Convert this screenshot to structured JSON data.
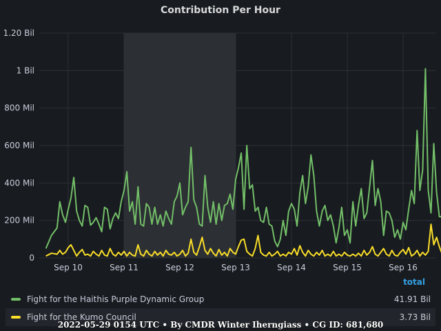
{
  "chart_data": {
    "type": "line",
    "title": "Contribution Per Hour",
    "x_ticks": [
      "Sep 10",
      "Sep 11",
      "Sep 12",
      "Sep 13",
      "Sep 14",
      "Sep 15",
      "Sep 16"
    ],
    "y_ticks": [
      "0",
      "200 Mil",
      "400 Mil",
      "600 Mil",
      "800 Mil",
      "1 Bil",
      "1.20 Bil"
    ],
    "ylim": [
      0,
      1200000000
    ],
    "x_unit": "days since Sep 10 00:00",
    "highlight_region": {
      "from": "Sep 11",
      "to": "Sep 13"
    },
    "grid": true,
    "legend_header": "total",
    "legend_placement": "bottom",
    "series": [
      {
        "name": "Fight for the Haithis Purple Dynamic Group",
        "color": "#73bf69",
        "total": "41.91 Bil",
        "points": [
          [
            -0.4,
            50
          ],
          [
            -0.3,
            120
          ],
          [
            -0.2,
            160
          ],
          [
            -0.15,
            300
          ],
          [
            -0.1,
            230
          ],
          [
            -0.05,
            190
          ],
          [
            0.0,
            260
          ],
          [
            0.05,
            320
          ],
          [
            0.1,
            430
          ],
          [
            0.15,
            250
          ],
          [
            0.2,
            200
          ],
          [
            0.25,
            170
          ],
          [
            0.3,
            280
          ],
          [
            0.35,
            270
          ],
          [
            0.4,
            175
          ],
          [
            0.45,
            190
          ],
          [
            0.5,
            215
          ],
          [
            0.55,
            180
          ],
          [
            0.6,
            140
          ],
          [
            0.65,
            270
          ],
          [
            0.7,
            260
          ],
          [
            0.75,
            155
          ],
          [
            0.8,
            210
          ],
          [
            0.85,
            240
          ],
          [
            0.9,
            210
          ],
          [
            0.95,
            300
          ],
          [
            1.0,
            360
          ],
          [
            1.05,
            460
          ],
          [
            1.1,
            250
          ],
          [
            1.15,
            300
          ],
          [
            1.2,
            180
          ],
          [
            1.25,
            380
          ],
          [
            1.3,
            180
          ],
          [
            1.35,
            170
          ],
          [
            1.4,
            290
          ],
          [
            1.45,
            270
          ],
          [
            1.5,
            180
          ],
          [
            1.55,
            270
          ],
          [
            1.6,
            180
          ],
          [
            1.65,
            230
          ],
          [
            1.7,
            170
          ],
          [
            1.75,
            250
          ],
          [
            1.8,
            210
          ],
          [
            1.85,
            180
          ],
          [
            1.9,
            300
          ],
          [
            1.95,
            330
          ],
          [
            2.0,
            400
          ],
          [
            2.05,
            230
          ],
          [
            2.1,
            270
          ],
          [
            2.15,
            300
          ],
          [
            2.2,
            590
          ],
          [
            2.25,
            310
          ],
          [
            2.3,
            270
          ],
          [
            2.35,
            180
          ],
          [
            2.4,
            170
          ],
          [
            2.45,
            440
          ],
          [
            2.5,
            270
          ],
          [
            2.55,
            190
          ],
          [
            2.6,
            300
          ],
          [
            2.65,
            180
          ],
          [
            2.7,
            290
          ],
          [
            2.75,
            200
          ],
          [
            2.8,
            280
          ],
          [
            2.85,
            290
          ],
          [
            2.9,
            340
          ],
          [
            2.95,
            260
          ],
          [
            3.0,
            420
          ],
          [
            3.05,
            480
          ],
          [
            3.1,
            560
          ],
          [
            3.15,
            260
          ],
          [
            3.2,
            600
          ],
          [
            3.25,
            370
          ],
          [
            3.3,
            390
          ],
          [
            3.35,
            250
          ],
          [
            3.4,
            270
          ],
          [
            3.45,
            200
          ],
          [
            3.5,
            190
          ],
          [
            3.55,
            270
          ],
          [
            3.6,
            180
          ],
          [
            3.65,
            170
          ],
          [
            3.7,
            90
          ],
          [
            3.75,
            60
          ],
          [
            3.8,
            100
          ],
          [
            3.85,
            200
          ],
          [
            3.9,
            120
          ],
          [
            3.95,
            250
          ],
          [
            4.0,
            290
          ],
          [
            4.05,
            260
          ],
          [
            4.1,
            170
          ],
          [
            4.15,
            350
          ],
          [
            4.2,
            440
          ],
          [
            4.25,
            290
          ],
          [
            4.3,
            380
          ],
          [
            4.35,
            550
          ],
          [
            4.4,
            440
          ],
          [
            4.45,
            250
          ],
          [
            4.5,
            170
          ],
          [
            4.55,
            250
          ],
          [
            4.6,
            280
          ],
          [
            4.65,
            200
          ],
          [
            4.7,
            230
          ],
          [
            4.75,
            170
          ],
          [
            4.8,
            80
          ],
          [
            4.85,
            160
          ],
          [
            4.9,
            270
          ],
          [
            4.95,
            120
          ],
          [
            5.0,
            150
          ],
          [
            5.05,
            80
          ],
          [
            5.1,
            300
          ],
          [
            5.15,
            170
          ],
          [
            5.2,
            280
          ],
          [
            5.25,
            370
          ],
          [
            5.3,
            210
          ],
          [
            5.35,
            240
          ],
          [
            5.4,
            380
          ],
          [
            5.45,
            520
          ],
          [
            5.5,
            280
          ],
          [
            5.55,
            370
          ],
          [
            5.6,
            300
          ],
          [
            5.65,
            120
          ],
          [
            5.7,
            250
          ],
          [
            5.75,
            240
          ],
          [
            5.8,
            200
          ],
          [
            5.85,
            110
          ],
          [
            5.9,
            150
          ],
          [
            5.95,
            100
          ],
          [
            6.0,
            190
          ],
          [
            6.05,
            150
          ],
          [
            6.1,
            260
          ],
          [
            6.15,
            360
          ],
          [
            6.2,
            290
          ],
          [
            6.25,
            680
          ],
          [
            6.3,
            360
          ],
          [
            6.35,
            470
          ],
          [
            6.4,
            1010
          ],
          [
            6.45,
            360
          ],
          [
            6.5,
            240
          ],
          [
            6.55,
            610
          ],
          [
            6.6,
            350
          ],
          [
            6.65,
            220
          ],
          [
            6.7,
            220
          ],
          [
            6.75,
            150
          ],
          [
            6.8,
            10
          ]
        ]
      },
      {
        "name": "Fight for the Kumo Council",
        "color": "#fade2a",
        "total": "3.73 Bil",
        "points": [
          [
            -0.4,
            10
          ],
          [
            -0.3,
            25
          ],
          [
            -0.2,
            20
          ],
          [
            -0.15,
            40
          ],
          [
            -0.1,
            20
          ],
          [
            -0.05,
            30
          ],
          [
            0.0,
            55
          ],
          [
            0.05,
            70
          ],
          [
            0.1,
            40
          ],
          [
            0.15,
            10
          ],
          [
            0.2,
            30
          ],
          [
            0.25,
            45
          ],
          [
            0.3,
            15
          ],
          [
            0.35,
            20
          ],
          [
            0.4,
            10
          ],
          [
            0.45,
            35
          ],
          [
            0.5,
            20
          ],
          [
            0.55,
            10
          ],
          [
            0.6,
            40
          ],
          [
            0.65,
            15
          ],
          [
            0.7,
            10
          ],
          [
            0.75,
            50
          ],
          [
            0.8,
            20
          ],
          [
            0.85,
            10
          ],
          [
            0.9,
            30
          ],
          [
            0.95,
            15
          ],
          [
            1.0,
            35
          ],
          [
            1.05,
            10
          ],
          [
            1.1,
            30
          ],
          [
            1.15,
            15
          ],
          [
            1.2,
            10
          ],
          [
            1.25,
            70
          ],
          [
            1.3,
            20
          ],
          [
            1.35,
            10
          ],
          [
            1.4,
            40
          ],
          [
            1.45,
            20
          ],
          [
            1.5,
            10
          ],
          [
            1.55,
            35
          ],
          [
            1.6,
            15
          ],
          [
            1.65,
            30
          ],
          [
            1.7,
            10
          ],
          [
            1.75,
            40
          ],
          [
            1.8,
            20
          ],
          [
            1.85,
            15
          ],
          [
            1.9,
            30
          ],
          [
            1.95,
            10
          ],
          [
            2.0,
            20
          ],
          [
            2.05,
            40
          ],
          [
            2.1,
            10
          ],
          [
            2.15,
            25
          ],
          [
            2.2,
            100
          ],
          [
            2.25,
            30
          ],
          [
            2.3,
            15
          ],
          [
            2.35,
            60
          ],
          [
            2.4,
            110
          ],
          [
            2.45,
            40
          ],
          [
            2.5,
            20
          ],
          [
            2.55,
            50
          ],
          [
            2.6,
            25
          ],
          [
            2.65,
            10
          ],
          [
            2.7,
            45
          ],
          [
            2.75,
            15
          ],
          [
            2.8,
            30
          ],
          [
            2.85,
            10
          ],
          [
            2.9,
            50
          ],
          [
            2.95,
            30
          ],
          [
            3.0,
            20
          ],
          [
            3.05,
            60
          ],
          [
            3.1,
            95
          ],
          [
            3.15,
            100
          ],
          [
            3.2,
            35
          ],
          [
            3.25,
            20
          ],
          [
            3.3,
            10
          ],
          [
            3.35,
            50
          ],
          [
            3.4,
            120
          ],
          [
            3.45,
            30
          ],
          [
            3.5,
            15
          ],
          [
            3.55,
            10
          ],
          [
            3.6,
            30
          ],
          [
            3.65,
            10
          ],
          [
            3.7,
            20
          ],
          [
            3.75,
            35
          ],
          [
            3.8,
            10
          ],
          [
            3.85,
            20
          ],
          [
            3.9,
            10
          ],
          [
            3.95,
            30
          ],
          [
            4.0,
            20
          ],
          [
            4.05,
            50
          ],
          [
            4.1,
            15
          ],
          [
            4.15,
            65
          ],
          [
            4.2,
            30
          ],
          [
            4.25,
            10
          ],
          [
            4.3,
            40
          ],
          [
            4.35,
            20
          ],
          [
            4.4,
            10
          ],
          [
            4.45,
            30
          ],
          [
            4.5,
            15
          ],
          [
            4.55,
            40
          ],
          [
            4.6,
            10
          ],
          [
            4.65,
            20
          ],
          [
            4.7,
            10
          ],
          [
            4.75,
            35
          ],
          [
            4.8,
            10
          ],
          [
            4.85,
            20
          ],
          [
            4.9,
            10
          ],
          [
            4.95,
            30
          ],
          [
            5.0,
            15
          ],
          [
            5.05,
            10
          ],
          [
            5.1,
            20
          ],
          [
            5.15,
            10
          ],
          [
            5.2,
            25
          ],
          [
            5.25,
            10
          ],
          [
            5.3,
            40
          ],
          [
            5.35,
            15
          ],
          [
            5.4,
            30
          ],
          [
            5.45,
            60
          ],
          [
            5.5,
            20
          ],
          [
            5.55,
            10
          ],
          [
            5.6,
            30
          ],
          [
            5.65,
            50
          ],
          [
            5.7,
            20
          ],
          [
            5.75,
            10
          ],
          [
            5.8,
            40
          ],
          [
            5.85,
            15
          ],
          [
            5.9,
            10
          ],
          [
            5.95,
            30
          ],
          [
            6.0,
            45
          ],
          [
            6.05,
            20
          ],
          [
            6.1,
            55
          ],
          [
            6.15,
            10
          ],
          [
            6.2,
            20
          ],
          [
            6.25,
            40
          ],
          [
            6.3,
            10
          ],
          [
            6.35,
            30
          ],
          [
            6.4,
            15
          ],
          [
            6.45,
            35
          ],
          [
            6.5,
            180
          ],
          [
            6.55,
            70
          ],
          [
            6.6,
            110
          ],
          [
            6.65,
            60
          ],
          [
            6.7,
            20
          ],
          [
            6.75,
            10
          ],
          [
            6.8,
            5
          ]
        ]
      }
    ]
  },
  "footer": "2022-05-29 0154 UTC • By CMDR Winter Iherngiass • CG ID: 681,680"
}
